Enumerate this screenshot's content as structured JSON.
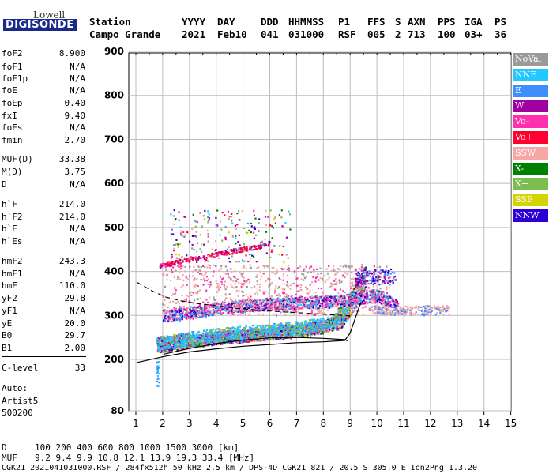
{
  "logo": {
    "line1": "Lowell",
    "line2": "DIGISONDE"
  },
  "header": {
    "row1": [
      "Station",
      "YYYY",
      "DAY",
      "DDD",
      "HHMMSS",
      "P1",
      "FFS",
      "S",
      "AXN",
      "PPS",
      "IGA",
      "PS"
    ],
    "row2": [
      "Campo Grande",
      "2021",
      "Feb10",
      "041",
      "031000",
      "RSF",
      "005",
      "2",
      "713",
      "100",
      "03+",
      "36"
    ]
  },
  "params": [
    {
      "group": 1,
      "name": "foF2",
      "value": "8.900"
    },
    {
      "group": 1,
      "name": "foF1",
      "value": "N/A"
    },
    {
      "group": 1,
      "name": "foF1p",
      "value": "N/A"
    },
    {
      "group": 1,
      "name": "foE",
      "value": "N/A"
    },
    {
      "group": 1,
      "name": "foEp",
      "value": "0.40"
    },
    {
      "group": 1,
      "name": "fxI",
      "value": "9.40"
    },
    {
      "group": 1,
      "name": "foEs",
      "value": "N/A"
    },
    {
      "group": 1,
      "name": "fmin",
      "value": "2.70"
    },
    {
      "group": 2,
      "name": "MUF(D)",
      "value": "33.38"
    },
    {
      "group": 2,
      "name": "M(D)",
      "value": "3.75"
    },
    {
      "group": 2,
      "name": "D",
      "value": "N/A"
    },
    {
      "group": 3,
      "name": "h`F",
      "value": "214.0"
    },
    {
      "group": 3,
      "name": "h`F2",
      "value": "214.0"
    },
    {
      "group": 3,
      "name": "h`E",
      "value": "N/A"
    },
    {
      "group": 3,
      "name": "h`Es",
      "value": "N/A"
    },
    {
      "group": 4,
      "name": "hmF2",
      "value": "243.3"
    },
    {
      "group": 4,
      "name": "hmF1",
      "value": "N/A"
    },
    {
      "group": 4,
      "name": "hmE",
      "value": "110.0"
    },
    {
      "group": 4,
      "name": "yF2",
      "value": "29.8"
    },
    {
      "group": 4,
      "name": "yF1",
      "value": "N/A"
    },
    {
      "group": 4,
      "name": "yE",
      "value": "20.0"
    },
    {
      "group": 4,
      "name": "B0",
      "value": "29.7"
    },
    {
      "group": 4,
      "name": "B1",
      "value": "2.00"
    },
    {
      "group": 5,
      "name": "C-level",
      "value": "33"
    }
  ],
  "auto": {
    "line1": "Auto:",
    "line2": "Artist5",
    "line3": "500200"
  },
  "legend": [
    {
      "label": "NoVal",
      "color": "#9a9a9a"
    },
    {
      "label": "NNE",
      "color": "#22c8ff"
    },
    {
      "label": "E",
      "color": "#3f8fff"
    },
    {
      "label": "W",
      "color": "#a000a0"
    },
    {
      "label": "Vo-",
      "color": "#ff2fae"
    },
    {
      "label": "Vo+",
      "color": "#ff0030"
    },
    {
      "label": "SSW",
      "color": "#f7a6a6"
    },
    {
      "label": "X-",
      "color": "#008000"
    },
    {
      "label": "X+",
      "color": "#7cbe4e"
    },
    {
      "label": "SSE",
      "color": "#d4d400"
    },
    {
      "label": "NNW",
      "color": "#2a00d4"
    }
  ],
  "chart_data": {
    "type": "scatter",
    "x_ticks": [
      1,
      2,
      3,
      4,
      5,
      6,
      7,
      8,
      9,
      10,
      11,
      12,
      13,
      14,
      15
    ],
    "y_ticks": [
      80,
      200,
      300,
      400,
      500,
      600,
      700,
      800,
      900
    ],
    "xlim": [
      0.9,
      15.2
    ],
    "ylim_broken": "80 then 200-900",
    "grid": true,
    "profile_curve": {
      "x": [
        1.05,
        2.0,
        3.0,
        4.0,
        5.0,
        6.0,
        7.0,
        8.0,
        8.8,
        9.0,
        9.2,
        9.4
      ],
      "y": [
        193,
        206,
        217,
        224,
        230,
        234,
        238,
        240,
        243,
        260,
        295,
        330
      ]
    },
    "profile_lower": {
      "x": [
        2.05,
        3.0,
        4.0,
        5.0,
        6.0,
        7.0,
        8.0,
        8.8,
        8.9
      ],
      "y": [
        212,
        225,
        236,
        244,
        249,
        250,
        248,
        245,
        242
      ]
    },
    "dashed_curve": {
      "x": [
        1.05,
        1.6,
        2.1,
        2.7,
        3.3,
        4.0,
        4.8,
        5.6,
        6.5,
        7.4,
        8.2,
        9.0
      ],
      "y": [
        375,
        356,
        342,
        333,
        327,
        322,
        316,
        312,
        308,
        305,
        302,
        299
      ]
    },
    "traces": [
      {
        "name": "F-trace",
        "x": [
          1.8,
          2.2,
          2.6,
          3.0,
          3.5,
          4.0,
          4.5,
          5.0,
          5.5,
          6.0,
          6.5,
          7.0,
          7.5,
          8.0,
          8.5,
          8.8,
          9.0,
          9.2,
          9.4,
          9.6
        ],
        "y": [
          222,
          224,
          228,
          232,
          236,
          240,
          243,
          245,
          248,
          250,
          253,
          256,
          260,
          265,
          275,
          290,
          310,
          330,
          350,
          375
        ]
      },
      {
        "name": "second-hop",
        "x": [
          1.9,
          2.5,
          3.0,
          3.5,
          4.0,
          4.5,
          5.0,
          5.5,
          6.0
        ],
        "y": [
          412,
          420,
          428,
          432,
          438,
          444,
          450,
          455,
          462
        ]
      },
      {
        "name": "multipath",
        "x": [
          2.0,
          3.0,
          4.0,
          5.0,
          6.0,
          7.0,
          8.0,
          9.0,
          10.0,
          10.8
        ],
        "y": [
          298,
          305,
          315,
          322,
          325,
          327,
          330,
          335,
          345,
          320
        ]
      }
    ]
  },
  "footer": {
    "d_label": "D",
    "d_values": "100  200  400  600  800 1000 1500 3000 [km]",
    "muf_label": "MUF",
    "muf_values": "9.2  9.4  9.9 10.8 12.1 13.9 19.3 33.4 [MHz]",
    "file_line": "CGK21_2021041031000.RSF / 284fx512h 50 kHz 2.5 km / DPS-4D CGK21 821 / 20.5 S 305.0 E Ion2Png 1.3.20"
  }
}
